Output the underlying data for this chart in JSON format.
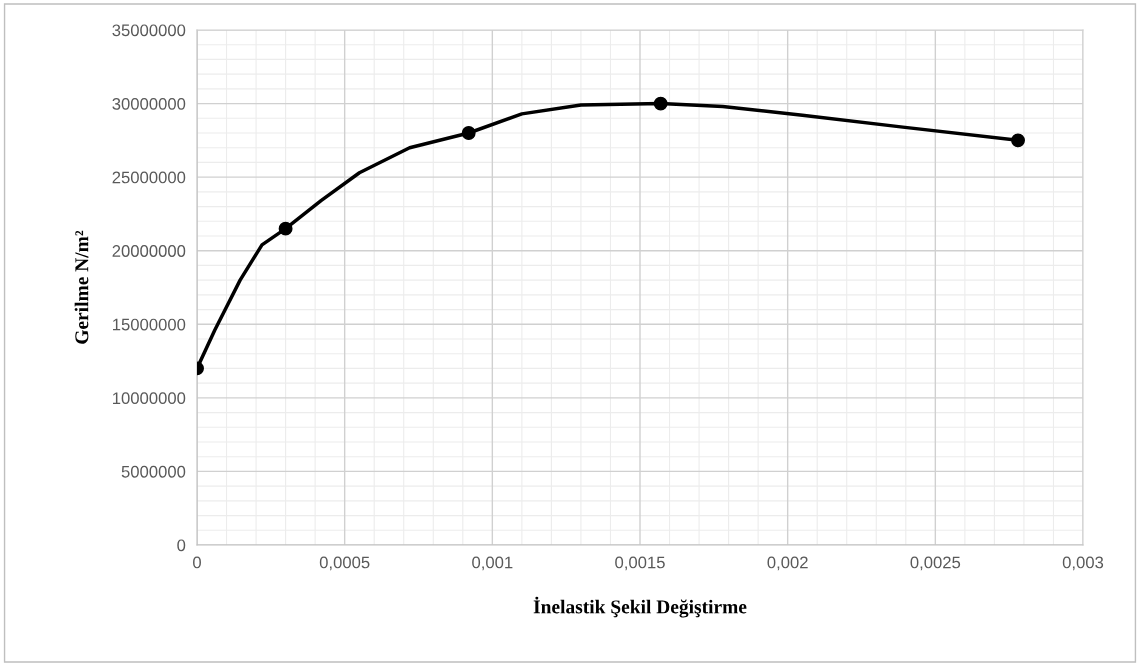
{
  "chart_data": {
    "type": "line",
    "xlabel": "İnelastik Şekil Değiştirme",
    "ylabel": "Gerilme N/m²",
    "x": [
      0,
      0.0003,
      0.00092,
      0.00157,
      0.00278
    ],
    "series": [
      {
        "color": "#000000",
        "marker": "none",
        "x": [
          0,
          6e-05,
          0.000146,
          0.00022,
          0.0003,
          0.00042,
          0.00055,
          0.00072,
          0.00092,
          0.0011,
          0.0013,
          0.00157,
          0.00178,
          0.00205,
          0.00239,
          0.00278
        ],
        "values": [
          12000000,
          14600000,
          18000000,
          20400000,
          21500000,
          23400000,
          25300000,
          27000000,
          28000000,
          29300000,
          29900000,
          30000000,
          29800000,
          29200000,
          28400000,
          27500000
        ]
      },
      {
        "type": "scatter",
        "color": "#000000",
        "values": [
          12000000,
          21500000,
          28000000,
          30000000,
          27500000
        ]
      }
    ],
    "xlim": [
      0,
      0.003
    ],
    "ylim": [
      0,
      35000000
    ],
    "xticks": [
      0,
      {
        "value": 0.0005,
        "label": "0,0005"
      },
      {
        "value": 0.001,
        "label": "0,001"
      },
      {
        "value": 0.0015,
        "label": "0,0015"
      },
      {
        "value": 0.002,
        "label": "0,002"
      },
      {
        "value": 0.0025,
        "label": "0,0025"
      },
      {
        "value": 0.003,
        "label": "0,003"
      }
    ],
    "yticks": [
      0,
      5000000,
      10000000,
      15000000,
      20000000,
      25000000,
      30000000,
      35000000
    ],
    "grid": true,
    "marker": "circle",
    "line_style": "solid"
  }
}
